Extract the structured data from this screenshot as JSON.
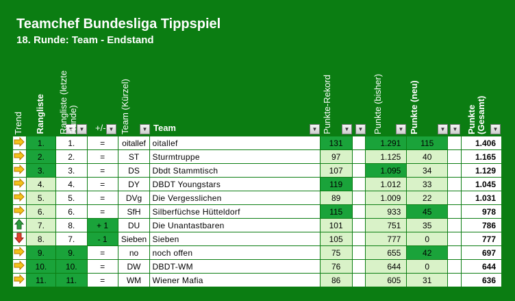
{
  "title": "Teamchef Bundesliga Tippspiel",
  "subtitle": "18. Runde: Team - Endstand",
  "headers": {
    "trend": "Trend",
    "rangliste": "Rangliste",
    "rangliste_letzte": "Rangliste (letzte Runde)",
    "plusminus": "+/-",
    "team_kuerzel": "Team (Kürzel)",
    "team": "Team",
    "punkte_rekord": "Punkte-Rekord",
    "punkte_bisher": "Punkte (bisher)",
    "punkte_neu": "Punkte (neu)",
    "punkte_gesamt": "Punkte (Gesamt)"
  },
  "colors": {
    "background": "#0b7d12",
    "highlight": "#1aa33a",
    "light": "#d9f2c8"
  },
  "rows": [
    {
      "trend": "right",
      "rang": "1.",
      "rang_alt": "1.",
      "diff": "=",
      "kurz": "oitallef",
      "team": "oitallef",
      "rekord": "131",
      "bisher": "1.291",
      "neu": "115",
      "gesamt": "1.406"
    },
    {
      "trend": "right",
      "rang": "2.",
      "rang_alt": "2.",
      "diff": "=",
      "kurz": "ST",
      "team": "Sturmtruppe",
      "rekord": "97",
      "bisher": "1.125",
      "neu": "40",
      "gesamt": "1.165"
    },
    {
      "trend": "right",
      "rang": "3.",
      "rang_alt": "3.",
      "diff": "=",
      "kurz": "DS",
      "team": "Dbdt Stammtisch",
      "rekord": "107",
      "bisher": "1.095",
      "neu": "34",
      "gesamt": "1.129"
    },
    {
      "trend": "right",
      "rang": "4.",
      "rang_alt": "4.",
      "diff": "=",
      "kurz": "DY",
      "team": "DBDT Youngstars",
      "rekord": "119",
      "bisher": "1.012",
      "neu": "33",
      "gesamt": "1.045"
    },
    {
      "trend": "right",
      "rang": "5.",
      "rang_alt": "5.",
      "diff": "=",
      "kurz": "DVg",
      "team": "Die Vergesslichen",
      "rekord": "89",
      "bisher": "1.009",
      "neu": "22",
      "gesamt": "1.031"
    },
    {
      "trend": "right",
      "rang": "6.",
      "rang_alt": "6.",
      "diff": "=",
      "kurz": "SfH",
      "team": "Silberfüchse Hütteldorf",
      "rekord": "115",
      "bisher": "933",
      "neu": "45",
      "gesamt": "978"
    },
    {
      "trend": "up",
      "rang": "7.",
      "rang_alt": "8.",
      "diff": "+ 1",
      "kurz": "DU",
      "team": "Die Unantastbaren",
      "rekord": "101",
      "bisher": "751",
      "neu": "35",
      "gesamt": "786"
    },
    {
      "trend": "down",
      "rang": "8.",
      "rang_alt": "7.",
      "diff": "- 1",
      "kurz": "Sieben",
      "team": "Sieben",
      "rekord": "105",
      "bisher": "777",
      "neu": "0",
      "gesamt": "777"
    },
    {
      "trend": "right",
      "rang": "9.",
      "rang_alt": "9.",
      "diff": "=",
      "kurz": "no",
      "team": "noch offen",
      "rekord": "75",
      "bisher": "655",
      "neu": "42",
      "gesamt": "697"
    },
    {
      "trend": "right",
      "rang": "10.",
      "rang_alt": "10.",
      "diff": "=",
      "kurz": "DW",
      "team": "DBDT-WM",
      "rekord": "76",
      "bisher": "644",
      "neu": "0",
      "gesamt": "644"
    },
    {
      "trend": "right",
      "rang": "11.",
      "rang_alt": "11.",
      "diff": "=",
      "kurz": "WM",
      "team": "Wiener Mafia",
      "rekord": "86",
      "bisher": "605",
      "neu": "31",
      "gesamt": "636"
    }
  ]
}
